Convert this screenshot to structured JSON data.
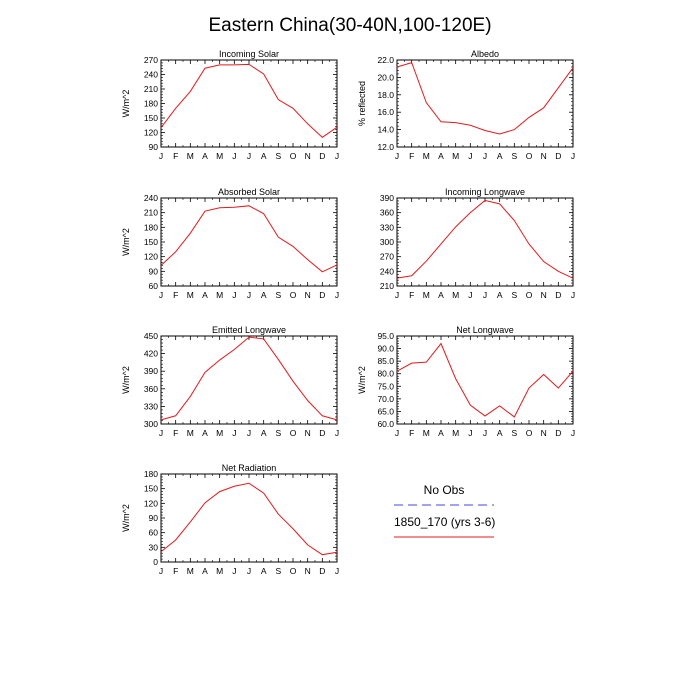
{
  "figure_title": "Eastern China(30-40N,100-120E)",
  "legend": {
    "entries": [
      {
        "label": "No Obs",
        "color": "#6a6ae6",
        "dashed": true
      },
      {
        "label": "1850_170 (yrs 3-6)",
        "color": "#e41a1c",
        "dashed": false
      }
    ]
  },
  "chart_data": [
    {
      "type": "line",
      "title": "Incoming Solar",
      "ylabel": "W/m^2",
      "categories": [
        "J",
        "F",
        "M",
        "A",
        "M",
        "J",
        "J",
        "A",
        "S",
        "O",
        "N",
        "D",
        "J"
      ],
      "ylim": [
        90,
        270
      ],
      "yticks": [
        "90",
        "120",
        "150",
        "180",
        "210",
        "240",
        "270"
      ],
      "series": [
        {
          "color": "#e41a1c",
          "values": [
            130,
            170,
            205,
            253,
            260,
            260,
            261,
            241,
            188,
            170,
            138,
            110,
            131
          ]
        }
      ]
    },
    {
      "type": "line",
      "title": "Albedo",
      "ylabel": "% reflected",
      "categories": [
        "J",
        "F",
        "M",
        "A",
        "M",
        "J",
        "J",
        "A",
        "S",
        "O",
        "N",
        "D",
        "J"
      ],
      "ylim": [
        12,
        22
      ],
      "yticks": [
        "12.0",
        "14.0",
        "16.0",
        "18.0",
        "20.0",
        "22.0"
      ],
      "series": [
        {
          "color": "#e41a1c",
          "values": [
            21.2,
            21.7,
            17.1,
            14.9,
            14.8,
            14.5,
            13.9,
            13.5,
            14.0,
            15.4,
            16.5,
            18.8,
            21.1
          ]
        }
      ]
    },
    {
      "type": "line",
      "title": "Absorbed Solar",
      "ylabel": "W/m^2",
      "categories": [
        "J",
        "F",
        "M",
        "A",
        "M",
        "J",
        "J",
        "A",
        "S",
        "O",
        "N",
        "D",
        "J"
      ],
      "ylim": [
        60,
        240
      ],
      "yticks": [
        "60",
        "90",
        "120",
        "150",
        "180",
        "210",
        "240"
      ],
      "series": [
        {
          "color": "#e41a1c",
          "values": [
            102,
            130,
            168,
            213,
            220,
            221,
            224,
            208,
            160,
            141,
            114,
            89,
            103
          ]
        }
      ]
    },
    {
      "type": "line",
      "title": "Incoming Longwave",
      "ylabel": "",
      "categories": [
        "J",
        "F",
        "M",
        "A",
        "M",
        "J",
        "J",
        "A",
        "S",
        "O",
        "N",
        "D",
        "J"
      ],
      "ylim": [
        210,
        390
      ],
      "yticks": [
        "210",
        "240",
        "270",
        "300",
        "330",
        "360",
        "390"
      ],
      "series": [
        {
          "color": "#e41a1c",
          "values": [
            226,
            231,
            261,
            296,
            331,
            360,
            385,
            378,
            344,
            296,
            260,
            240,
            226
          ]
        }
      ]
    },
    {
      "type": "line",
      "title": "Emitted Longwave",
      "ylabel": "W/m^2",
      "categories": [
        "J",
        "F",
        "M",
        "A",
        "M",
        "J",
        "J",
        "A",
        "S",
        "O",
        "N",
        "D",
        "J"
      ],
      "ylim": [
        300,
        450
      ],
      "yticks": [
        "300",
        "330",
        "360",
        "390",
        "420",
        "450"
      ],
      "series": [
        {
          "color": "#e41a1c",
          "values": [
            307,
            314,
            347,
            388,
            409,
            427,
            448,
            445,
            410,
            373,
            340,
            314,
            307
          ]
        }
      ]
    },
    {
      "type": "line",
      "title": "Net Longwave",
      "ylabel": "W/m^2",
      "categories": [
        "J",
        "F",
        "M",
        "A",
        "M",
        "J",
        "J",
        "A",
        "S",
        "O",
        "N",
        "D",
        "J"
      ],
      "ylim": [
        60,
        95
      ],
      "yticks": [
        "60.0",
        "65.0",
        "70.0",
        "75.0",
        "80.0",
        "85.0",
        "90.0",
        "95.0"
      ],
      "series": [
        {
          "color": "#e41a1c",
          "values": [
            81.0,
            84.2,
            84.6,
            92.0,
            78.0,
            67.5,
            63.2,
            67.2,
            62.8,
            74.3,
            79.7,
            74.3,
            81.0
          ]
        }
      ]
    },
    {
      "type": "line",
      "title": "Net Radiation",
      "ylabel": "W/m^2",
      "categories": [
        "J",
        "F",
        "M",
        "A",
        "M",
        "J",
        "J",
        "A",
        "S",
        "O",
        "N",
        "D",
        "J"
      ],
      "ylim": [
        0,
        180
      ],
      "yticks": [
        "0",
        "30",
        "60",
        "90",
        "120",
        "150",
        "180"
      ],
      "series": [
        {
          "color": "#e41a1c",
          "values": [
            21,
            45,
            82,
            121,
            144,
            155,
            161,
            141,
            98,
            68,
            35,
            15,
            20
          ]
        }
      ]
    }
  ]
}
